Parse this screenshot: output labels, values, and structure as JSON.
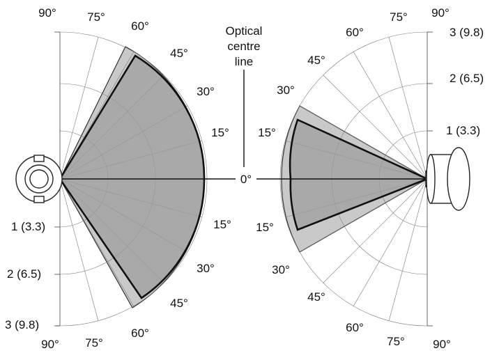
{
  "center_label": {
    "line1": "Optical",
    "line2": "centre",
    "line3": "line"
  },
  "zero_label": "0°",
  "left_plot": {
    "angles_upper": [
      "90°",
      "75°",
      "60°",
      "45°",
      "30°",
      "15°"
    ],
    "angles_lower": [
      "15°",
      "30°",
      "45°",
      "60°",
      "75°",
      "90°"
    ],
    "distances": [
      "1 (3.3)",
      "2 (6.5)",
      "3 (9.8)"
    ]
  },
  "right_plot": {
    "angles_upper": [
      "90°",
      "75°",
      "60°",
      "45°",
      "30°",
      "15°"
    ],
    "angles_lower": [
      "15°",
      "30°",
      "45°",
      "60°",
      "75°",
      "90°"
    ],
    "distances": [
      "3 (9.8)",
      "2 (6.5)",
      "1 (3.3)"
    ]
  },
  "colors": {
    "outer_lobe": "#c9c9c9",
    "inner_lobe": "#9d9d9d",
    "grid": "#7a7a7a"
  },
  "icons": {
    "left_device": "round-sensor-front-icon",
    "right_device": "cylindrical-sensor-side-icon"
  }
}
